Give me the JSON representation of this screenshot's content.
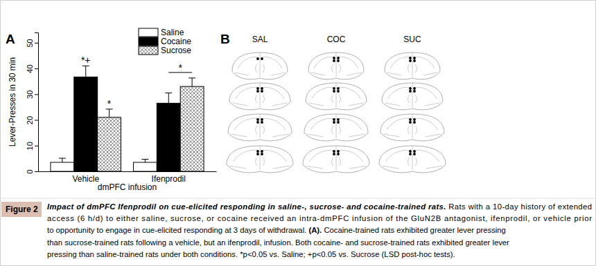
{
  "chart_data": {
    "type": "bar",
    "panel_label": "A",
    "categories": [
      "Vehicle",
      "Ifenprodil"
    ],
    "x_label": "dmPFC infusion",
    "y_label": "Lever-Presses in 30 min",
    "series": [
      {
        "name": "Saline",
        "color": "#ffffff",
        "values": [
          3.5,
          3.5
        ],
        "errors": [
          1.6,
          1.2
        ]
      },
      {
        "name": "Cocaine",
        "color": "#000000",
        "values": [
          36.7,
          26.5
        ],
        "errors": [
          4.3,
          4.0
        ]
      },
      {
        "name": "Sucrose",
        "color": "#666666",
        "line_style": "crosshatch",
        "values": [
          21,
          33
        ],
        "errors": [
          3.2,
          3.3
        ]
      }
    ],
    "ylim": [
      0,
      54
    ],
    "yticks": [
      0,
      10,
      20,
      30,
      40,
      50
    ],
    "legend": "top-right",
    "annotations": [
      {
        "text": "*+",
        "series": 1,
        "category": 0
      },
      {
        "text": "*",
        "series": 2,
        "category": 0
      },
      {
        "text": "*",
        "series": [
          1,
          2
        ],
        "category": 1
      }
    ]
  },
  "panel_b": {
    "label": "B",
    "columns": [
      "SAL",
      "COC",
      "SUC"
    ]
  },
  "caption": {
    "label": "Figure 2",
    "lines": [
      [
        {
          "text": "Impact of dmPFC Ifenprodil on cue-elicited responding in saline-, sucrose- and cocaine-trained rats.",
          "style": "title"
        },
        {
          "text": " Rats with a 10-day history of extended",
          "style": "normal"
        }
      ],
      [
        {
          "text": "access (6 h/d) to either saline, sucrose, or cocaine received an intra-dmPFC infusion of the GluN2B antagonist, ifenprodil, or vehicle prior",
          "style": "normal"
        }
      ],
      [
        {
          "text": "to opportunity to engage in cue-elicited responding at 3 days of withdrawal. ",
          "style": "normal"
        },
        {
          "text": "(A).",
          "style": "bold"
        },
        {
          "text": " Cocaine-trained rats exhibited greater lever pressing",
          "style": "normal"
        }
      ],
      [
        {
          "text": "than sucrose-trained rats following a vehicle, but an ifenprodil, infusion. Both cocaine- and sucrose-trained rats exhibited greater lever",
          "style": "normal"
        }
      ],
      [
        {
          "text": "pressing than saline-trained rats under both conditions. *p<0.05 vs. Saline; +p<0.05 vs. Sucrose (LSD post-hoc tests).",
          "style": "normal"
        }
      ]
    ]
  }
}
